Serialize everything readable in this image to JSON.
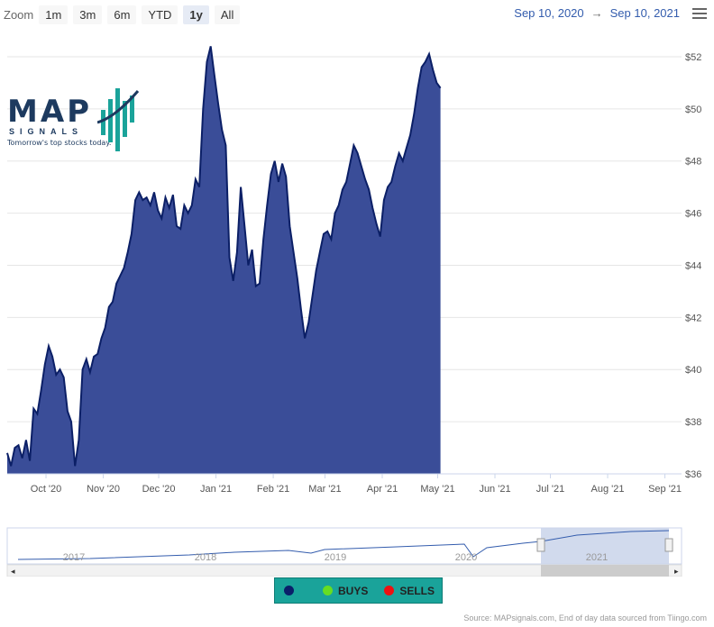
{
  "zoom": {
    "label": "Zoom",
    "buttons": [
      "1m",
      "3m",
      "6m",
      "YTD",
      "1y",
      "All"
    ],
    "active": "1y"
  },
  "range": {
    "from": "Sep 10, 2020",
    "arrow": "→",
    "to": "Sep 10, 2021"
  },
  "logo": {
    "name": "MAP",
    "sub": "SIGNALS",
    "tagline": "Tomorrow's top stocks today."
  },
  "legend": {
    "items": [
      {
        "label": "",
        "color": "#0a1f6a"
      },
      {
        "label": "BUYS",
        "color": "#66dd22"
      },
      {
        "label": "SELLS",
        "color": "#ee1111"
      }
    ]
  },
  "source": "Source: MAPsignals.com, End of day data sourced from Tiingo.com",
  "colors": {
    "fill": "#3a4d98",
    "line": "#0b1f66",
    "grid": "#e6e6e6",
    "axis_text": "#555555"
  },
  "chart_data": {
    "type": "area",
    "ylim": [
      36,
      53
    ],
    "yticks": [
      "$36",
      "$38",
      "$40",
      "$42",
      "$44",
      "$46",
      "$48",
      "$50",
      "$52"
    ],
    "xticks": [
      "Oct '20",
      "Nov '20",
      "Dec '20",
      "Jan '21",
      "Feb '21",
      "Mar '21",
      "Apr '21",
      "May '21",
      "Jun '21",
      "Jul '21",
      "Aug '21",
      "Sep '21"
    ],
    "xtick_days": [
      21,
      52,
      82,
      113,
      144,
      172,
      203,
      233,
      264,
      294,
      325,
      356
    ],
    "x_days_total": 365,
    "series": [
      {
        "values": [
          [
            0,
            36.8
          ],
          [
            2,
            36.3
          ],
          [
            4,
            37.0
          ],
          [
            6,
            37.1
          ],
          [
            8,
            36.6
          ],
          [
            10,
            37.3
          ],
          [
            12,
            36.5
          ],
          [
            14,
            38.5
          ],
          [
            16,
            38.3
          ],
          [
            18,
            39.2
          ],
          [
            20,
            40.2
          ],
          [
            22,
            40.9
          ],
          [
            24,
            40.5
          ],
          [
            26,
            39.8
          ],
          [
            28,
            40.0
          ],
          [
            30,
            39.7
          ],
          [
            32,
            38.4
          ],
          [
            34,
            38.0
          ],
          [
            36,
            36.3
          ],
          [
            38,
            37.3
          ],
          [
            40,
            40.0
          ],
          [
            42,
            40.4
          ],
          [
            44,
            39.9
          ],
          [
            46,
            40.5
          ],
          [
            48,
            40.6
          ],
          [
            50,
            41.2
          ],
          [
            52,
            41.6
          ],
          [
            54,
            42.4
          ],
          [
            56,
            42.6
          ],
          [
            58,
            43.3
          ],
          [
            60,
            43.6
          ],
          [
            62,
            43.9
          ],
          [
            64,
            44.5
          ],
          [
            66,
            45.2
          ],
          [
            68,
            46.5
          ],
          [
            70,
            46.8
          ],
          [
            72,
            46.5
          ],
          [
            74,
            46.6
          ],
          [
            76,
            46.3
          ],
          [
            78,
            46.8
          ],
          [
            80,
            46.1
          ],
          [
            82,
            45.8
          ],
          [
            84,
            46.6
          ],
          [
            86,
            46.2
          ],
          [
            88,
            46.7
          ],
          [
            90,
            45.5
          ],
          [
            92,
            45.4
          ],
          [
            94,
            46.3
          ],
          [
            96,
            46.0
          ],
          [
            98,
            46.3
          ],
          [
            100,
            47.3
          ],
          [
            102,
            47.0
          ],
          [
            104,
            50.0
          ],
          [
            106,
            51.8
          ],
          [
            108,
            52.4
          ],
          [
            110,
            51.3
          ],
          [
            112,
            50.2
          ],
          [
            114,
            49.2
          ],
          [
            116,
            48.6
          ],
          [
            118,
            44.3
          ],
          [
            120,
            43.4
          ],
          [
            122,
            44.5
          ],
          [
            124,
            47.0
          ],
          [
            126,
            45.5
          ],
          [
            128,
            44.0
          ],
          [
            130,
            44.6
          ],
          [
            132,
            43.2
          ],
          [
            134,
            43.3
          ],
          [
            136,
            45.0
          ],
          [
            138,
            46.3
          ],
          [
            140,
            47.5
          ],
          [
            142,
            48.0
          ],
          [
            144,
            47.2
          ],
          [
            146,
            47.9
          ],
          [
            148,
            47.4
          ],
          [
            150,
            45.5
          ],
          [
            152,
            44.5
          ],
          [
            154,
            43.5
          ],
          [
            156,
            42.3
          ],
          [
            158,
            41.2
          ],
          [
            160,
            41.8
          ],
          [
            162,
            42.8
          ],
          [
            164,
            43.8
          ],
          [
            166,
            44.5
          ],
          [
            168,
            45.2
          ],
          [
            170,
            45.3
          ],
          [
            172,
            45.0
          ],
          [
            174,
            46.0
          ],
          [
            176,
            46.3
          ],
          [
            178,
            46.9
          ],
          [
            180,
            47.2
          ],
          [
            182,
            47.9
          ],
          [
            184,
            48.6
          ],
          [
            186,
            48.3
          ],
          [
            188,
            47.8
          ],
          [
            190,
            47.3
          ],
          [
            192,
            46.9
          ],
          [
            194,
            46.2
          ],
          [
            196,
            45.6
          ],
          [
            198,
            45.1
          ],
          [
            200,
            46.5
          ],
          [
            202,
            47.0
          ],
          [
            204,
            47.2
          ],
          [
            206,
            47.8
          ],
          [
            208,
            48.3
          ],
          [
            210,
            48.0
          ],
          [
            212,
            48.5
          ],
          [
            214,
            49.0
          ],
          [
            216,
            49.8
          ],
          [
            218,
            50.8
          ],
          [
            220,
            51.6
          ],
          [
            222,
            51.8
          ],
          [
            224,
            52.1
          ],
          [
            226,
            51.5
          ],
          [
            228,
            51.0
          ],
          [
            230,
            50.8
          ]
        ]
      }
    ],
    "navigator": {
      "labels": [
        "2017",
        "2018",
        "2019",
        "2020",
        "2021"
      ]
    }
  }
}
